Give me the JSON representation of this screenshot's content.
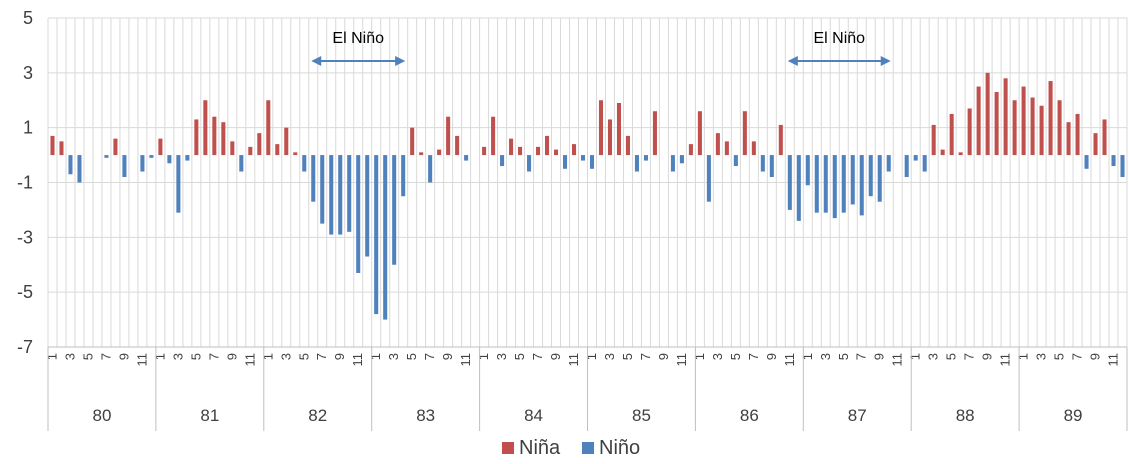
{
  "chart_data": {
    "type": "bar",
    "years": [
      "80",
      "81",
      "82",
      "83",
      "84",
      "85",
      "86",
      "87",
      "88",
      "89"
    ],
    "months_per_year": 12,
    "month_tick_labels": [
      "1",
      "3",
      "5",
      "7",
      "9",
      "11"
    ],
    "yticks": [
      5,
      3,
      1,
      -1,
      -3,
      -5,
      -7
    ],
    "ylim": [
      -7,
      5
    ],
    "grid": true,
    "legend_position": "bottom",
    "series": [
      {
        "name": "Niña",
        "color": "#c0504d"
      },
      {
        "name": "Niño",
        "color": "#4f81bd"
      }
    ],
    "values": [
      0.7,
      0.5,
      -0.7,
      -1.0,
      0,
      0,
      -0.1,
      0.6,
      -0.8,
      0,
      -0.6,
      -0.1,
      0.6,
      -0.3,
      -2.1,
      -0.2,
      1.3,
      2.0,
      1.4,
      1.2,
      0.5,
      -0.6,
      0.3,
      0.8,
      2.0,
      0.4,
      1.0,
      0.1,
      -0.6,
      -1.7,
      -2.5,
      -2.9,
      -2.9,
      -2.8,
      -4.3,
      -3.7,
      -5.8,
      -6.0,
      -4.0,
      -1.5,
      1.0,
      0.1,
      -1.0,
      0.2,
      1.4,
      0.7,
      -0.2,
      0,
      0.3,
      1.4,
      -0.4,
      0.6,
      0.3,
      -0.6,
      0.3,
      0.7,
      0.2,
      -0.5,
      0.4,
      -0.2,
      -0.5,
      2.0,
      1.3,
      1.9,
      0.7,
      -0.6,
      -0.2,
      1.6,
      0,
      -0.6,
      -0.3,
      0.4,
      1.6,
      -1.7,
      0.8,
      0.5,
      -0.4,
      1.6,
      0.5,
      -0.6,
      -0.8,
      1.1,
      -2.0,
      -2.4,
      -1.1,
      -2.1,
      -2.1,
      -2.3,
      -2.1,
      -1.8,
      -2.2,
      -1.5,
      -1.7,
      -0.6,
      0,
      -0.8,
      -0.2,
      -0.6,
      1.1,
      0.2,
      1.5,
      0.1,
      1.7,
      2.5,
      3.0,
      2.3,
      2.8,
      2.0,
      2.5,
      2.1,
      1.8,
      2.7,
      2.0,
      1.2,
      1.5,
      -0.5,
      0.8,
      1.3,
      -0.4,
      -0.8
    ],
    "annotations": [
      {
        "text": "El Niño",
        "from_index": 29,
        "to_index": 39
      },
      {
        "text": "El Niño",
        "from_index": 82,
        "to_index": 93
      }
    ]
  }
}
